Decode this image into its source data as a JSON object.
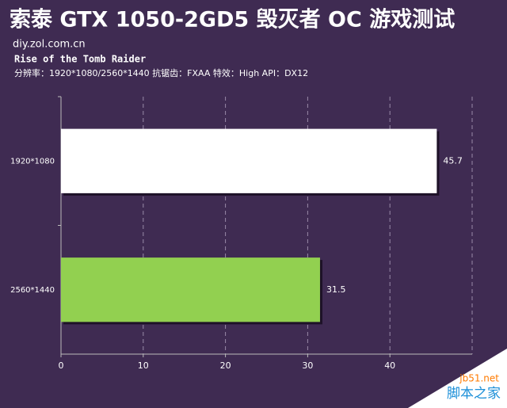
{
  "chart_data": {
    "type": "barh",
    "title": "索泰 GTX 1050-2GD5 毁灭者 OC 游戏测试",
    "source": "diy.zol.com.cn",
    "subtitle": "Rise of the Tomb Raider",
    "note": "分辨率：1920*1080/2560*1440  抗锯齿：FXAA  特效：High  API：DX12",
    "categories": [
      "1920*1080",
      "2560*1440"
    ],
    "values": [
      45.7,
      31.5
    ],
    "colors": [
      "#ffffff",
      "#92d050"
    ],
    "xlim": [
      0,
      50
    ],
    "xticks": [
      0,
      10,
      20,
      30,
      40
    ],
    "grid": true,
    "watermark": [
      "jb51.net",
      "脚本之家"
    ]
  }
}
